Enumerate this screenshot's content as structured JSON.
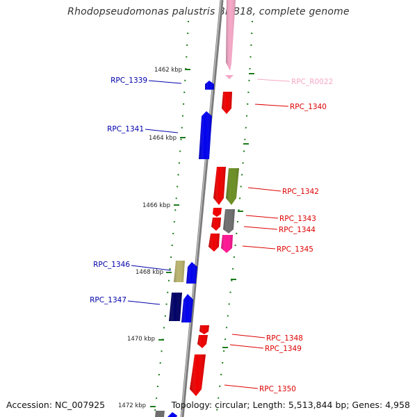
{
  "title": "Rhodopseudomonas palustris BisB18, complete genome",
  "footer": {
    "accession": "Accession: NC_007925",
    "summary": "Topology: circular; Length: 5,513,844 bp; Genes: 4,958"
  },
  "ticks": [
    "1462 kbp",
    "1464 kbp",
    "1466 kbp",
    "1468 kbp",
    "1470 kbp",
    "1472 kbp"
  ],
  "colors": {
    "backbone": "#8a8a8a",
    "tick": "#1a7a1a",
    "reverse_label": "#0000aa",
    "forward_label": "#dd0000",
    "rna_label": "#f4a7c6"
  },
  "genes_reverse": [
    {
      "name": "RPC_1339",
      "color": "#0000ee"
    },
    {
      "name": "RPC_1341",
      "color": "#0000ee"
    },
    {
      "name": "RPC_1346",
      "color": "#b9b36e"
    },
    {
      "name": "RPC_1346b",
      "color": "#0000ee"
    },
    {
      "name": "RPC_1347",
      "color": "#000066"
    },
    {
      "name": "RPC_1347b",
      "color": "#0000ee"
    }
  ],
  "genes_forward": [
    {
      "name": "RPC_R0022",
      "color": "#f4a7c6"
    },
    {
      "name": "RPC_1340",
      "color": "#ee0000"
    },
    {
      "name": "RPC_1342",
      "color": "#ee0000"
    },
    {
      "name": "RPC_1342b",
      "color": "#6b8e23"
    },
    {
      "name": "RPC_1343",
      "color": "#ee0000"
    },
    {
      "name": "RPC_1344",
      "color": "#ee0000"
    },
    {
      "name": "RPC_1344b",
      "color": "#6e6e6e"
    },
    {
      "name": "RPC_1345",
      "color": "#ee0000"
    },
    {
      "name": "RPC_1345b",
      "color": "#ff1493"
    },
    {
      "name": "RPC_1348",
      "color": "#ee0000"
    },
    {
      "name": "RPC_1349",
      "color": "#ee0000"
    },
    {
      "name": "RPC_1350",
      "color": "#ee0000"
    }
  ],
  "labels_left": [
    "RPC_1339",
    "RPC_1341",
    "RPC_1346",
    "RPC_1347"
  ],
  "labels_right": [
    "RPC_R0022",
    "RPC_1340",
    "RPC_1342",
    "RPC_1343",
    "RPC_1344",
    "RPC_1345",
    "RPC_1348",
    "RPC_1349",
    "RPC_1350"
  ]
}
